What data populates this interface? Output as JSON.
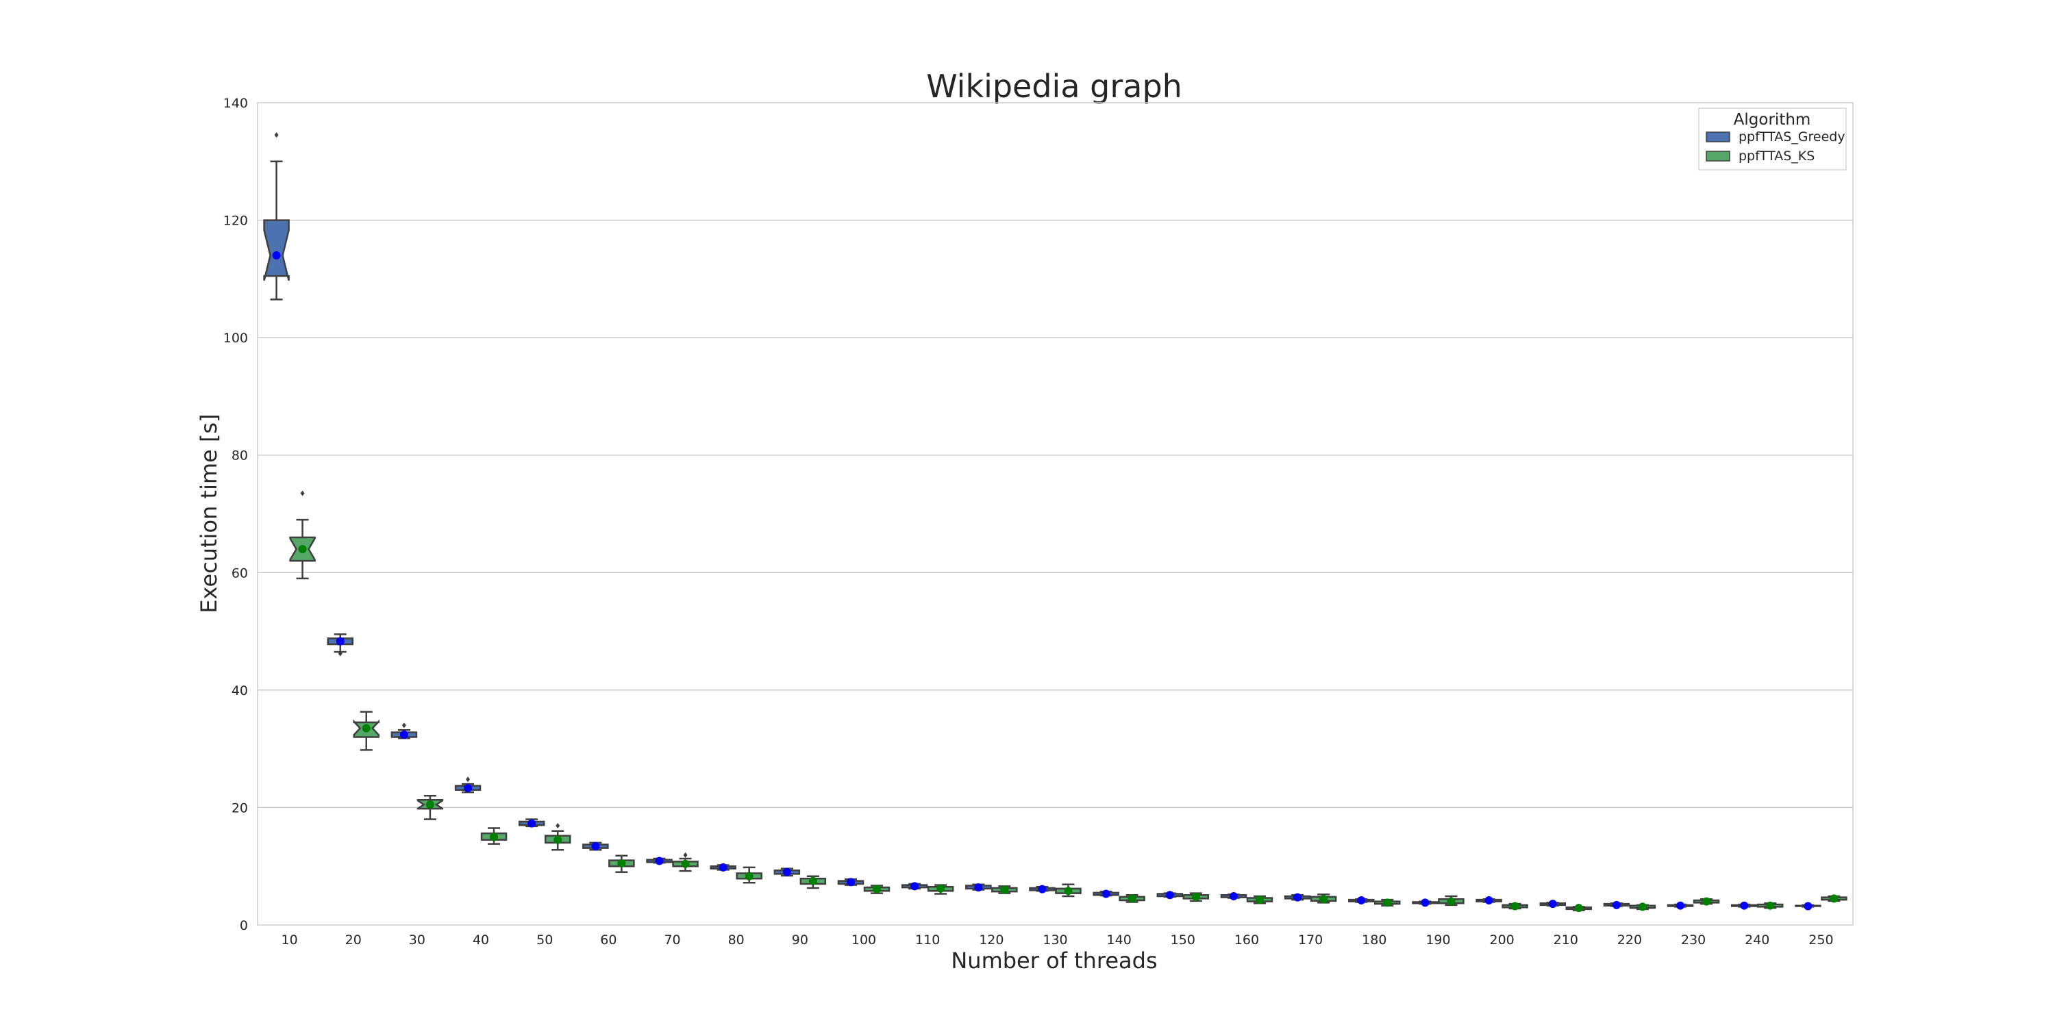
{
  "chart_data": {
    "type": "box",
    "title": "Wikipedia graph",
    "xlabel": "Number of threads",
    "ylabel": "Execution time [s]",
    "ylim": [
      0,
      140
    ],
    "yticks": [
      0,
      20,
      40,
      60,
      80,
      100,
      120,
      140
    ],
    "grid": "horizontal",
    "legend_position": "top-right",
    "legend_title": "Algorithm",
    "categories": [
      "10",
      "20",
      "30",
      "40",
      "50",
      "60",
      "70",
      "80",
      "90",
      "100",
      "110",
      "120",
      "130",
      "140",
      "150",
      "160",
      "170",
      "180",
      "190",
      "200",
      "210",
      "220",
      "230",
      "240",
      "250"
    ],
    "series": [
      {
        "name": "ppfTTAS_Greedy",
        "color": "#4c72b0",
        "mean_marker_color": "#0000ff",
        "boxes": [
          {
            "whislo": 106.5,
            "q1": 110.5,
            "med": 114,
            "q3": 120,
            "whishi": 130,
            "mean": 114,
            "fliers": [
              134.5
            ]
          },
          {
            "whislo": 46.5,
            "q1": 47.8,
            "med": 48.3,
            "q3": 48.8,
            "whishi": 49.5,
            "mean": 48.3,
            "fliers": [
              46.2
            ]
          },
          {
            "whislo": 31.8,
            "q1": 32,
            "med": 32.4,
            "q3": 32.8,
            "whishi": 33.2,
            "mean": 32.4,
            "fliers": [
              34
            ]
          },
          {
            "whislo": 22.6,
            "q1": 23,
            "med": 23.3,
            "q3": 23.7,
            "whishi": 24,
            "mean": 23.3,
            "fliers": [
              24.8
            ]
          },
          {
            "whislo": 16.8,
            "q1": 17,
            "med": 17.3,
            "q3": 17.6,
            "whishi": 18,
            "mean": 17.3,
            "fliers": []
          },
          {
            "whislo": 12.8,
            "q1": 13.1,
            "med": 13.4,
            "q3": 13.7,
            "whishi": 14,
            "mean": 13.4,
            "fliers": []
          },
          {
            "whislo": 10.6,
            "q1": 10.7,
            "med": 10.9,
            "q3": 11.1,
            "whishi": 11.3,
            "mean": 10.9,
            "fliers": []
          },
          {
            "whislo": 9.4,
            "q1": 9.6,
            "med": 9.8,
            "q3": 10,
            "whishi": 10.2,
            "mean": 9.8,
            "fliers": []
          },
          {
            "whislo": 8.4,
            "q1": 8.7,
            "med": 9,
            "q3": 9.3,
            "whishi": 9.6,
            "mean": 9,
            "fliers": []
          },
          {
            "whislo": 6.8,
            "q1": 7,
            "med": 7.3,
            "q3": 7.5,
            "whishi": 7.8,
            "mean": 7.3,
            "fliers": []
          },
          {
            "whislo": 6.2,
            "q1": 6.4,
            "med": 6.6,
            "q3": 6.8,
            "whishi": 7,
            "mean": 6.6,
            "fliers": []
          },
          {
            "whislo": 6,
            "q1": 6.2,
            "med": 6.4,
            "q3": 6.7,
            "whishi": 6.9,
            "mean": 6.4,
            "fliers": []
          },
          {
            "whislo": 5.8,
            "q1": 5.9,
            "med": 6.1,
            "q3": 6.3,
            "whishi": 6.5,
            "mean": 6.1,
            "fliers": []
          },
          {
            "whislo": 5,
            "q1": 5.1,
            "med": 5.3,
            "q3": 5.5,
            "whishi": 5.7,
            "mean": 5.3,
            "fliers": []
          },
          {
            "whislo": 4.8,
            "q1": 4.9,
            "med": 5.1,
            "q3": 5.3,
            "whishi": 5.4,
            "mean": 5.1,
            "fliers": []
          },
          {
            "whislo": 4.6,
            "q1": 4.7,
            "med": 4.9,
            "q3": 5.1,
            "whishi": 5.2,
            "mean": 4.9,
            "fliers": []
          },
          {
            "whislo": 4.3,
            "q1": 4.5,
            "med": 4.7,
            "q3": 4.9,
            "whishi": 5.1,
            "mean": 4.7,
            "fliers": []
          },
          {
            "whislo": 3.9,
            "q1": 4,
            "med": 4.2,
            "q3": 4.3,
            "whishi": 4.4,
            "mean": 4.2,
            "fliers": []
          },
          {
            "whislo": 3.6,
            "q1": 3.7,
            "med": 3.8,
            "q3": 3.9,
            "whishi": 4,
            "mean": 3.8,
            "fliers": []
          },
          {
            "whislo": 3.9,
            "q1": 4,
            "med": 4.2,
            "q3": 4.3,
            "whishi": 4.4,
            "mean": 4.2,
            "fliers": []
          },
          {
            "whislo": 3.3,
            "q1": 3.4,
            "med": 3.6,
            "q3": 3.7,
            "whishi": 3.8,
            "mean": 3.6,
            "fliers": []
          },
          {
            "whislo": 3.2,
            "q1": 3.3,
            "med": 3.4,
            "q3": 3.6,
            "whishi": 3.7,
            "mean": 3.4,
            "fliers": []
          },
          {
            "whislo": 3.1,
            "q1": 3.2,
            "med": 3.3,
            "q3": 3.4,
            "whishi": 3.5,
            "mean": 3.3,
            "fliers": []
          },
          {
            "whislo": 3.1,
            "q1": 3.2,
            "med": 3.3,
            "q3": 3.4,
            "whishi": 3.5,
            "mean": 3.3,
            "fliers": []
          },
          {
            "whislo": 3.1,
            "q1": 3.2,
            "med": 3.2,
            "q3": 3.3,
            "whishi": 3.4,
            "mean": 3.2,
            "fliers": []
          }
        ]
      },
      {
        "name": "ppfTTAS_KS",
        "color": "#55a868",
        "mean_marker_color": "#008000",
        "boxes": [
          {
            "whislo": 59,
            "q1": 62,
            "med": 64,
            "q3": 66,
            "whishi": 69,
            "mean": 64,
            "fliers": [
              73.5
            ]
          },
          {
            "whislo": 29.8,
            "q1": 32,
            "med": 33.5,
            "q3": 34.5,
            "whishi": 36.3,
            "mean": 33.5,
            "fliers": []
          },
          {
            "whislo": 18,
            "q1": 19.8,
            "med": 20.5,
            "q3": 21.3,
            "whishi": 22,
            "mean": 20.5,
            "fliers": []
          },
          {
            "whislo": 13.8,
            "q1": 14.5,
            "med": 15,
            "q3": 15.6,
            "whishi": 16.5,
            "mean": 15,
            "fliers": []
          },
          {
            "whislo": 12.8,
            "q1": 14,
            "med": 14.5,
            "q3": 15.2,
            "whishi": 16,
            "mean": 14.5,
            "fliers": [
              16.9
            ]
          },
          {
            "whislo": 9,
            "q1": 10,
            "med": 10.5,
            "q3": 11,
            "whishi": 11.8,
            "mean": 10.5,
            "fliers": []
          },
          {
            "whislo": 9.2,
            "q1": 10,
            "med": 10.4,
            "q3": 10.8,
            "whishi": 11.3,
            "mean": 10.4,
            "fliers": [
              11.9
            ]
          },
          {
            "whislo": 7.2,
            "q1": 7.9,
            "med": 8.3,
            "q3": 8.8,
            "whishi": 9.8,
            "mean": 8.3,
            "fliers": []
          },
          {
            "whislo": 6.3,
            "q1": 7,
            "med": 7.5,
            "q3": 7.9,
            "whishi": 8.3,
            "mean": 7.5,
            "fliers": []
          },
          {
            "whislo": 5.4,
            "q1": 5.8,
            "med": 6.1,
            "q3": 6.4,
            "whishi": 6.7,
            "mean": 6.1,
            "fliers": []
          },
          {
            "whislo": 5.3,
            "q1": 5.8,
            "med": 6.2,
            "q3": 6.5,
            "whishi": 6.8,
            "mean": 6.2,
            "fliers": []
          },
          {
            "whislo": 5.4,
            "q1": 5.7,
            "med": 6,
            "q3": 6.3,
            "whishi": 6.6,
            "mean": 6,
            "fliers": []
          },
          {
            "whislo": 4.9,
            "q1": 5.4,
            "med": 5.8,
            "q3": 6.2,
            "whishi": 6.9,
            "mean": 5.8,
            "fliers": []
          },
          {
            "whislo": 3.9,
            "q1": 4.2,
            "med": 4.5,
            "q3": 4.8,
            "whishi": 5.1,
            "mean": 4.5,
            "fliers": []
          },
          {
            "whislo": 4.1,
            "q1": 4.5,
            "med": 4.8,
            "q3": 5.1,
            "whishi": 5.4,
            "mean": 4.8,
            "fliers": []
          },
          {
            "whislo": 3.7,
            "q1": 4,
            "med": 4.3,
            "q3": 4.6,
            "whishi": 4.9,
            "mean": 4.3,
            "fliers": []
          },
          {
            "whislo": 3.8,
            "q1": 4.1,
            "med": 4.4,
            "q3": 4.8,
            "whishi": 5.2,
            "mean": 4.4,
            "fliers": []
          },
          {
            "whislo": 3.3,
            "q1": 3.6,
            "med": 3.8,
            "q3": 4,
            "whishi": 4.3,
            "mean": 3.8,
            "fliers": []
          },
          {
            "whislo": 3.4,
            "q1": 3.7,
            "med": 4,
            "q3": 4.4,
            "whishi": 4.9,
            "mean": 4,
            "fliers": []
          },
          {
            "whislo": 2.8,
            "q1": 3,
            "med": 3.2,
            "q3": 3.4,
            "whishi": 3.6,
            "mean": 3.2,
            "fliers": []
          },
          {
            "whislo": 2.5,
            "q1": 2.7,
            "med": 2.9,
            "q3": 3,
            "whishi": 3.1,
            "mean": 2.9,
            "fliers": []
          },
          {
            "whislo": 2.7,
            "q1": 2.9,
            "med": 3.1,
            "q3": 3.3,
            "whishi": 3.4,
            "mean": 3.1,
            "fliers": []
          },
          {
            "whislo": 3.6,
            "q1": 3.8,
            "med": 4,
            "q3": 4.2,
            "whishi": 4.4,
            "mean": 4,
            "fliers": []
          },
          {
            "whislo": 2.9,
            "q1": 3.1,
            "med": 3.3,
            "q3": 3.5,
            "whishi": 3.7,
            "mean": 3.3,
            "fliers": []
          },
          {
            "whislo": 4.1,
            "q1": 4.3,
            "med": 4.5,
            "q3": 4.7,
            "whishi": 4.9,
            "mean": 4.5,
            "fliers": []
          }
        ]
      }
    ]
  }
}
